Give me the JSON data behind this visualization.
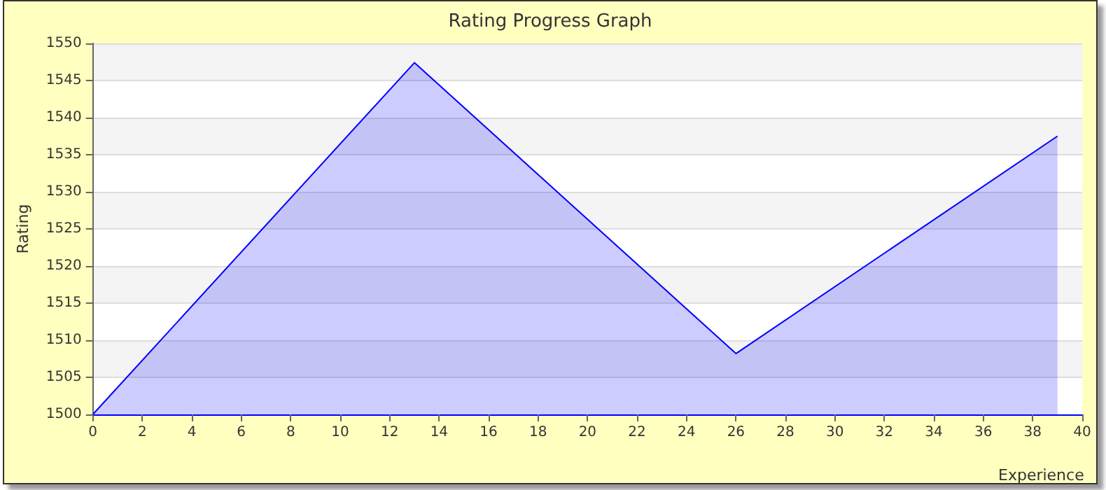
{
  "chart_data": {
    "type": "area",
    "title": "Rating Progress Graph",
    "xlabel": "Experience",
    "ylabel": "Rating",
    "x": [
      0,
      13,
      26,
      39
    ],
    "series": [
      {
        "color": "#0000ff",
        "values": [
          1500,
          1547.4,
          1508.2,
          1537.5
        ]
      }
    ],
    "xlim": [
      0,
      40
    ],
    "xticks": [
      0,
      2,
      4,
      6,
      8,
      10,
      12,
      14,
      16,
      18,
      20,
      22,
      24,
      26,
      28,
      30,
      32,
      34,
      36,
      38,
      40
    ],
    "ylim": [
      1500,
      1550
    ],
    "yticks": [
      1500,
      1505,
      1510,
      1515,
      1520,
      1525,
      1530,
      1535,
      1540,
      1545,
      1550
    ],
    "grid": "y",
    "marker": "none"
  }
}
